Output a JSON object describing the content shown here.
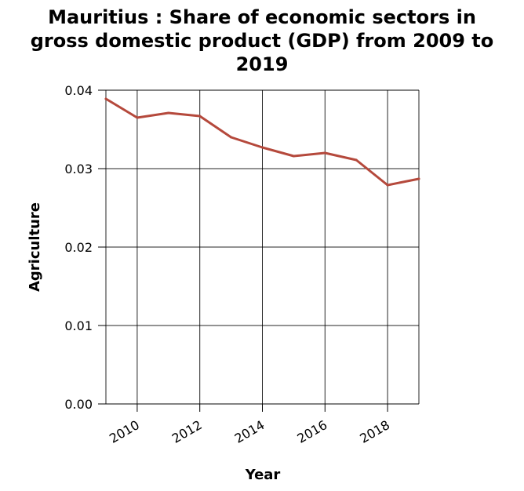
{
  "chart_data": {
    "type": "line",
    "title_lines": [
      "Mauritius : Share of economic sectors in",
      "gross domestic product (GDP) from 2009 to",
      "2019"
    ],
    "xlabel": "Year",
    "ylabel": "Agriculture",
    "xlim": [
      2009,
      2019
    ],
    "ylim": [
      0,
      0.04
    ],
    "xticks": [
      2010,
      2012,
      2014,
      2016,
      2018
    ],
    "xtick_labels": [
      "2010",
      "2012",
      "2014",
      "2016",
      "2018"
    ],
    "yticks": [
      0,
      0.01,
      0.02,
      0.03,
      0.04
    ],
    "ytick_labels": [
      "0.00",
      "0.01",
      "0.02",
      "0.03",
      "0.04"
    ],
    "grid": true,
    "series": [
      {
        "color": "#b5493c",
        "x": [
          2009,
          2010,
          2011,
          2012,
          2013,
          2014,
          2015,
          2016,
          2017,
          2018,
          2019
        ],
        "y": [
          0.0389,
          0.0365,
          0.0371,
          0.0367,
          0.034,
          0.0327,
          0.0316,
          0.032,
          0.0311,
          0.0279,
          0.0287
        ]
      }
    ]
  }
}
